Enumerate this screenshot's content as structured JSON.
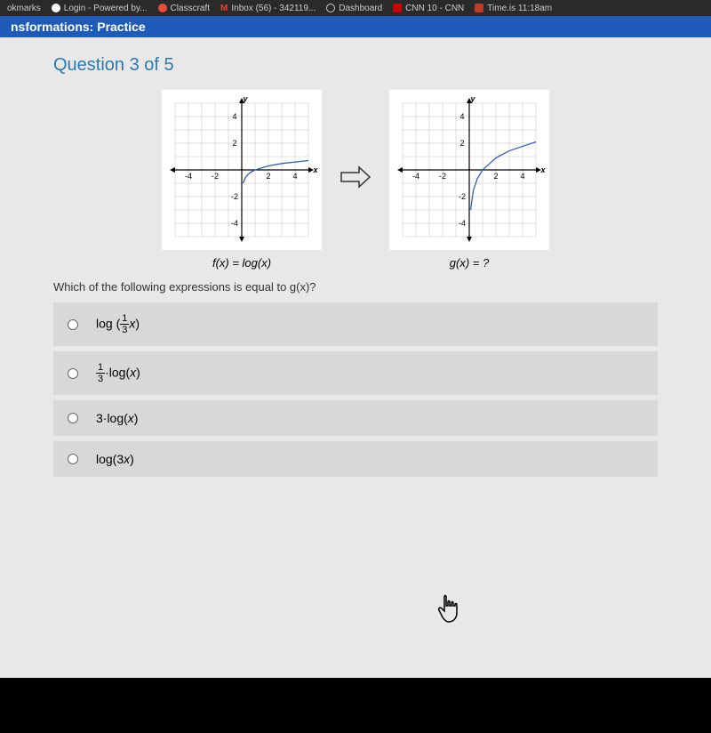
{
  "browser": {
    "tabs": [
      {
        "label": "okmarks"
      },
      {
        "label": "Login - Powered by..."
      },
      {
        "label": "Classcraft"
      },
      {
        "label": "Inbox (56) - 342119..."
      },
      {
        "label": "Dashboard"
      },
      {
        "label": "CNN 10 - CNN"
      },
      {
        "label": "Time.is 11:18am"
      }
    ]
  },
  "header": {
    "title": "nsformations: Practice"
  },
  "question": {
    "title": "Question 3 of 5",
    "prompt": "Which of the following expressions is equal to g(x)?",
    "graphs": {
      "left_caption": "f(x) = log(x)",
      "right_caption": "g(x) = ?",
      "axis": {
        "xlim": [
          -5,
          5
        ],
        "ylim": [
          -5,
          5
        ],
        "ticks": [
          -4,
          -2,
          2,
          4
        ],
        "y_label": "y",
        "x_label": "x",
        "grid_color": "#c0c0c0",
        "axis_color": "#000000",
        "curve_color": "#3a5fb0"
      },
      "left_curve": {
        "type": "log",
        "asymptote_x": 0,
        "points": [
          [
            0.1,
            -1
          ],
          [
            0.3,
            -0.52
          ],
          [
            0.6,
            -0.22
          ],
          [
            1,
            0
          ],
          [
            2,
            0.3
          ],
          [
            3,
            0.48
          ],
          [
            5,
            0.7
          ]
        ]
      },
      "right_curve": {
        "type": "log_stretched",
        "asymptote_x": 0,
        "points": [
          [
            0.1,
            -3
          ],
          [
            0.3,
            -1.57
          ],
          [
            0.6,
            -0.66
          ],
          [
            1,
            0
          ],
          [
            2,
            0.9
          ],
          [
            3,
            1.43
          ],
          [
            5,
            2.1
          ]
        ]
      }
    },
    "options": [
      {
        "id": "a",
        "html": "log (<span class='frac'><span class='top'>1</span><span class='bot'>3</span></span><i>x</i>)"
      },
      {
        "id": "b",
        "html": "<span class='frac'><span class='top'>1</span><span class='bot'>3</span></span>·log(<i>x</i>)"
      },
      {
        "id": "c",
        "html": "3·log(<i>x</i>)"
      },
      {
        "id": "d",
        "html": "log(3<i>x</i>)"
      }
    ]
  },
  "colors": {
    "header_bg": "#1e5bb8",
    "content_bg": "#e8e8e8",
    "option_bg": "#d8d8d8",
    "title_color": "#2a7ab0"
  }
}
